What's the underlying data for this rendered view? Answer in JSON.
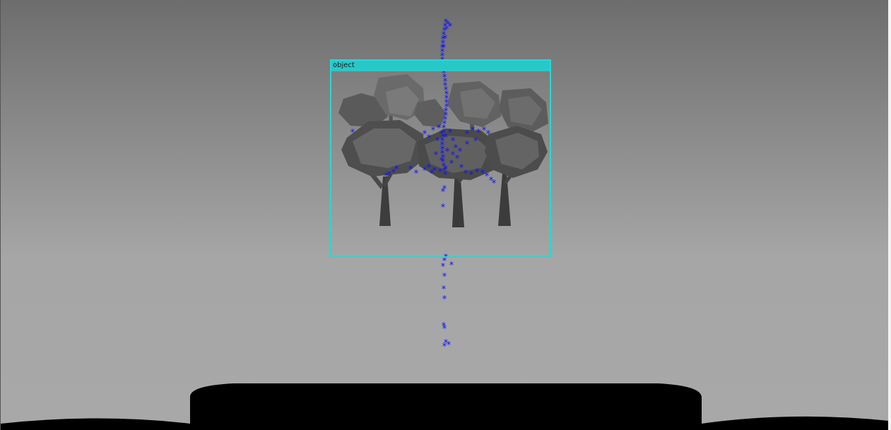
{
  "detection": {
    "label": "object",
    "box_color": "#29d6d6"
  },
  "keypoints": {
    "color": "#1010ff",
    "marker": "asterisk"
  },
  "scene": {
    "objects": [
      "tree-icon",
      "tree-icon",
      "tree-icon"
    ]
  }
}
